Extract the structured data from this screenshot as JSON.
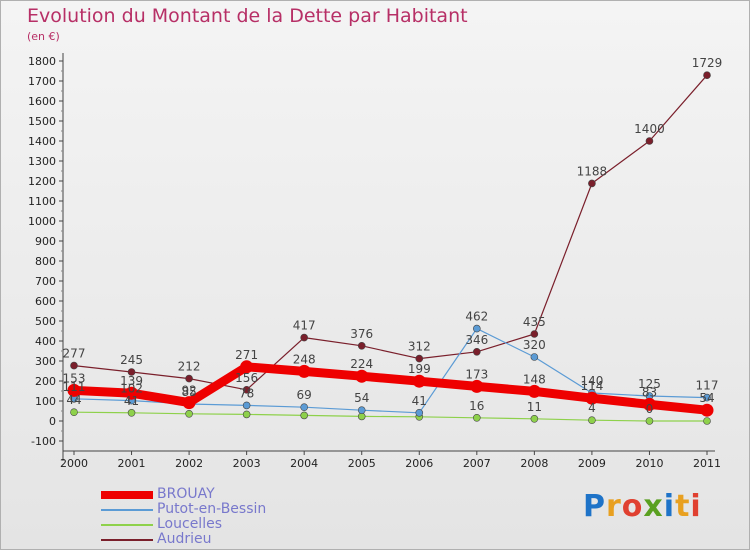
{
  "header": {
    "title": "Evolution du Montant de la Dette par Habitant",
    "subtitle": "(en €)"
  },
  "brand": {
    "name": "Proxiti"
  },
  "chart_data": {
    "type": "line",
    "title": "Evolution du Montant de la Dette par Habitant",
    "subtitle": "(en €)",
    "xlabel": "",
    "ylabel": "",
    "x": [
      "2000",
      "2001",
      "2002",
      "2003",
      "2004",
      "2005",
      "2006",
      "2007",
      "2008",
      "2009",
      "2010",
      "2011"
    ],
    "ylim": [
      -100,
      1800
    ],
    "yticks": [
      -100,
      0,
      100,
      200,
      300,
      400,
      500,
      600,
      700,
      800,
      900,
      1000,
      1100,
      1200,
      1300,
      1400,
      1500,
      1600,
      1700,
      1800
    ],
    "grid": false,
    "legend_position": "bottom-left",
    "series": [
      {
        "name": "BROUAY",
        "color": "#ee0000",
        "values": [
          153,
          139,
          92,
          271,
          248,
          224,
          199,
          173,
          148,
          114,
          83,
          54
        ]
      },
      {
        "name": "Putot-en-Bessin",
        "color": "#5b9bd5",
        "values": [
          111,
          102,
          85,
          78,
          69,
          54,
          41,
          462,
          320,
          140,
          125,
          117
        ]
      },
      {
        "name": "Loucelles",
        "color": "#8ed14b",
        "values": [
          44,
          41,
          36,
          33,
          28,
          23,
          21,
          16,
          11,
          4,
          0,
          0
        ]
      },
      {
        "name": "Audrieu",
        "color": "#7a1f2b",
        "values": [
          277,
          245,
          212,
          156,
          417,
          376,
          312,
          346,
          435,
          1188,
          1400,
          1729
        ]
      }
    ],
    "data_labels": [
      [
        "153",
        "139",
        "92",
        "271",
        "248",
        "224",
        "199",
        "173",
        "148",
        "114",
        "83",
        "54"
      ],
      [
        "111",
        "102",
        "85",
        "78",
        "69",
        "54",
        "41",
        "462",
        "320",
        "140",
        "125",
        "117"
      ],
      [
        "44",
        "41",
        "",
        "",
        "",
        "",
        "",
        "16",
        "11",
        "4",
        "0",
        ""
      ],
      [
        "277",
        "245",
        "212",
        "156",
        "417",
        "376",
        "312",
        "346",
        "435",
        "1188",
        "1400",
        "1729"
      ]
    ]
  }
}
